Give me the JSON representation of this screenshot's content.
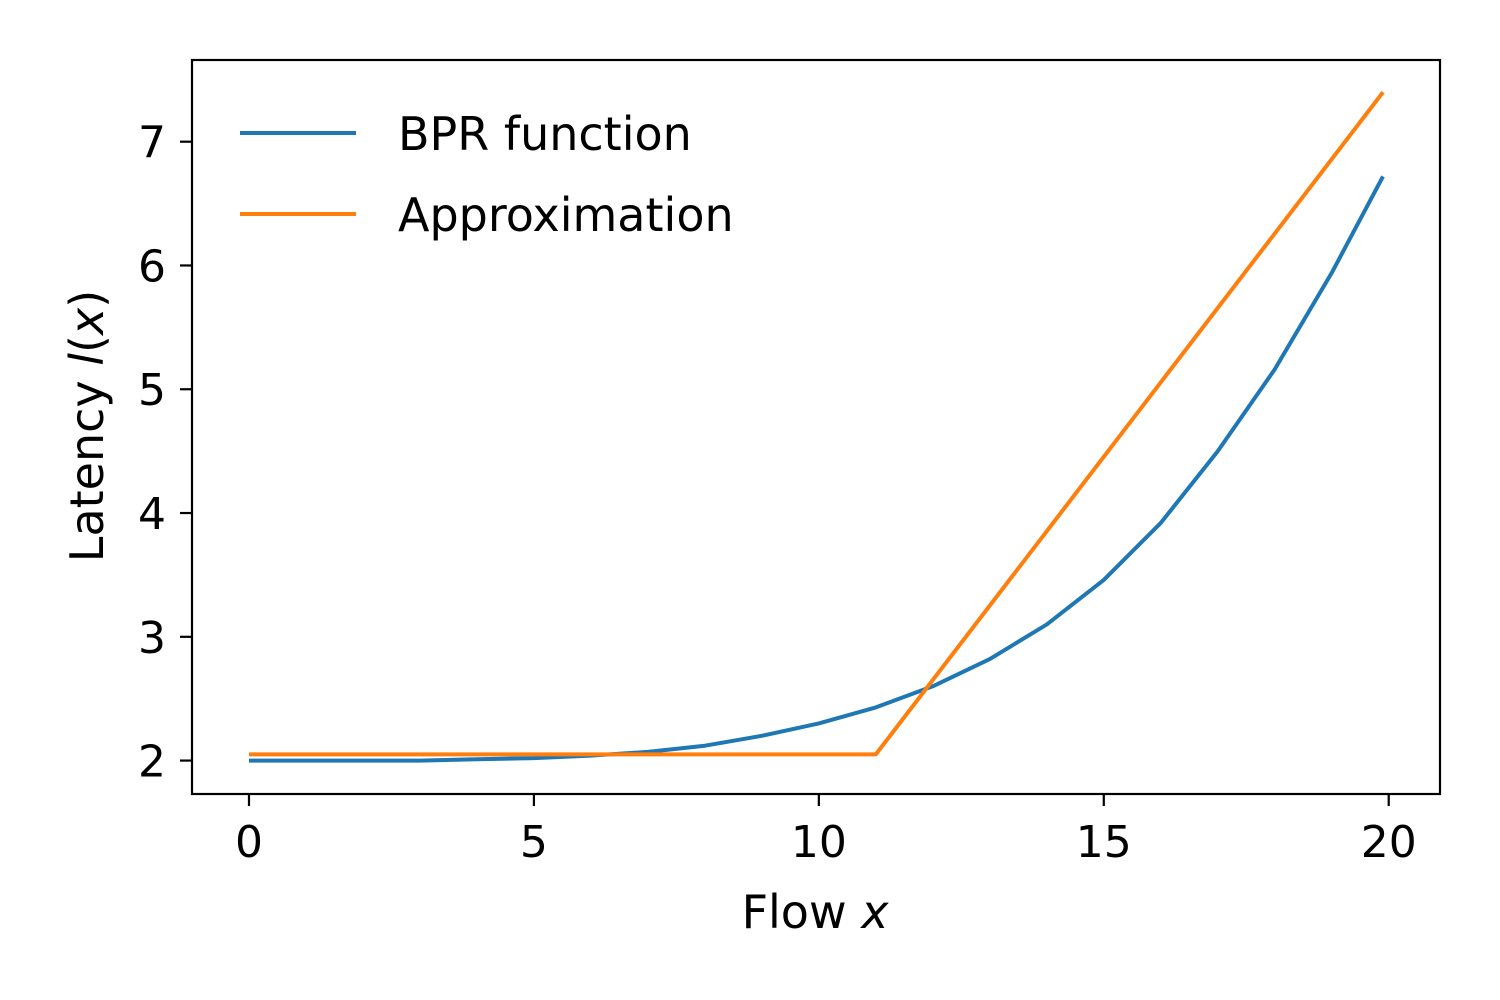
{
  "chart_data": {
    "type": "line",
    "xlabel_text": "Flow ",
    "xlabel_var": "x",
    "ylabel_text": "Latency ",
    "ylabel_var": "l",
    "ylabel_open": "(",
    "ylabel_arg": "x",
    "ylabel_close": ")",
    "xlim": [
      -1,
      20.9
    ],
    "ylim": [
      1.73,
      7.66
    ],
    "xticks": [
      0,
      5,
      10,
      15,
      20
    ],
    "xtick_labels": [
      "0",
      "5",
      "10",
      "15",
      "20"
    ],
    "yticks": [
      2,
      3,
      4,
      5,
      6,
      7
    ],
    "ytick_labels": [
      "2",
      "3",
      "4",
      "5",
      "6",
      "7"
    ],
    "grid": false,
    "legend_position": "upper-left",
    "series": [
      {
        "name": "BPR function",
        "color": "#1f77b4",
        "x": [
          0,
          1,
          2,
          3,
          4,
          5,
          6,
          7,
          8,
          9,
          10,
          11,
          12,
          13,
          14,
          15,
          16,
          17,
          18,
          19,
          19.9
        ],
        "y": [
          2.0,
          2.0,
          2.0,
          2.0,
          2.01,
          2.02,
          2.04,
          2.07,
          2.12,
          2.2,
          2.3,
          2.43,
          2.6,
          2.82,
          3.1,
          3.46,
          3.92,
          4.5,
          5.16,
          5.94,
          6.72
        ]
      },
      {
        "name": "Approximation",
        "color": "#ff7f0e",
        "x": [
          0,
          11,
          19.9
        ],
        "y": [
          2.05,
          2.05,
          7.4
        ]
      }
    ]
  }
}
